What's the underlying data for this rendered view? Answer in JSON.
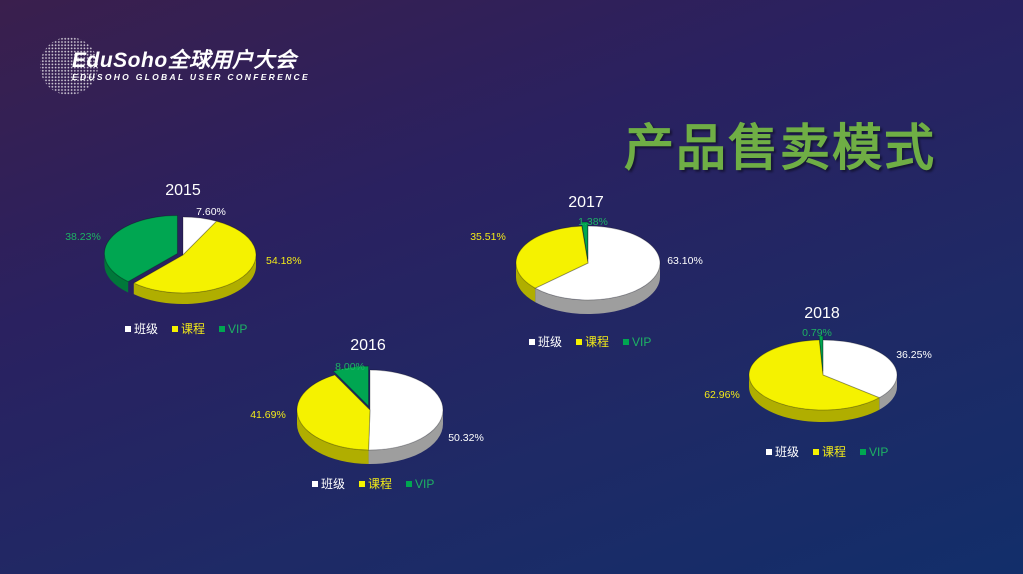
{
  "header": {
    "logo_title": "EduSoho全球用户大会",
    "logo_subtitle": "EDUSOHO GLOBAL USER CONFERENCE",
    "page_title": "产品售卖模式"
  },
  "colors": {
    "班级": "#ffffff",
    "课程": "#f5f200",
    "VIP": "#00a651",
    "label_班级": "#ffffff",
    "label_课程": "#f2ea18",
    "label_VIP": "#1db364"
  },
  "chart_data": [
    {
      "type": "pie",
      "title": "2015",
      "categories": [
        "班级",
        "课程",
        "VIP"
      ],
      "values": [
        7.6,
        54.18,
        38.23
      ],
      "labels": [
        "7.60%",
        "54.18%",
        "38.23%"
      ],
      "legend": "bottom"
    },
    {
      "type": "pie",
      "title": "2016",
      "categories": [
        "班级",
        "课程",
        "VIP"
      ],
      "values": [
        50.32,
        41.69,
        8.0
      ],
      "labels": [
        "50.32%",
        "41.69%",
        "8.00%"
      ],
      "legend": "bottom"
    },
    {
      "type": "pie",
      "title": "2017",
      "categories": [
        "班级",
        "课程",
        "VIP"
      ],
      "values": [
        63.1,
        35.51,
        1.38
      ],
      "labels": [
        "63.10%",
        "35.51%",
        "1.38%"
      ],
      "legend": "bottom"
    },
    {
      "type": "pie",
      "title": "2018",
      "categories": [
        "班级",
        "课程",
        "VIP"
      ],
      "values": [
        36.25,
        62.96,
        0.79
      ],
      "labels": [
        "36.25%",
        "62.96%",
        "0.79%"
      ],
      "legend": "bottom"
    }
  ]
}
